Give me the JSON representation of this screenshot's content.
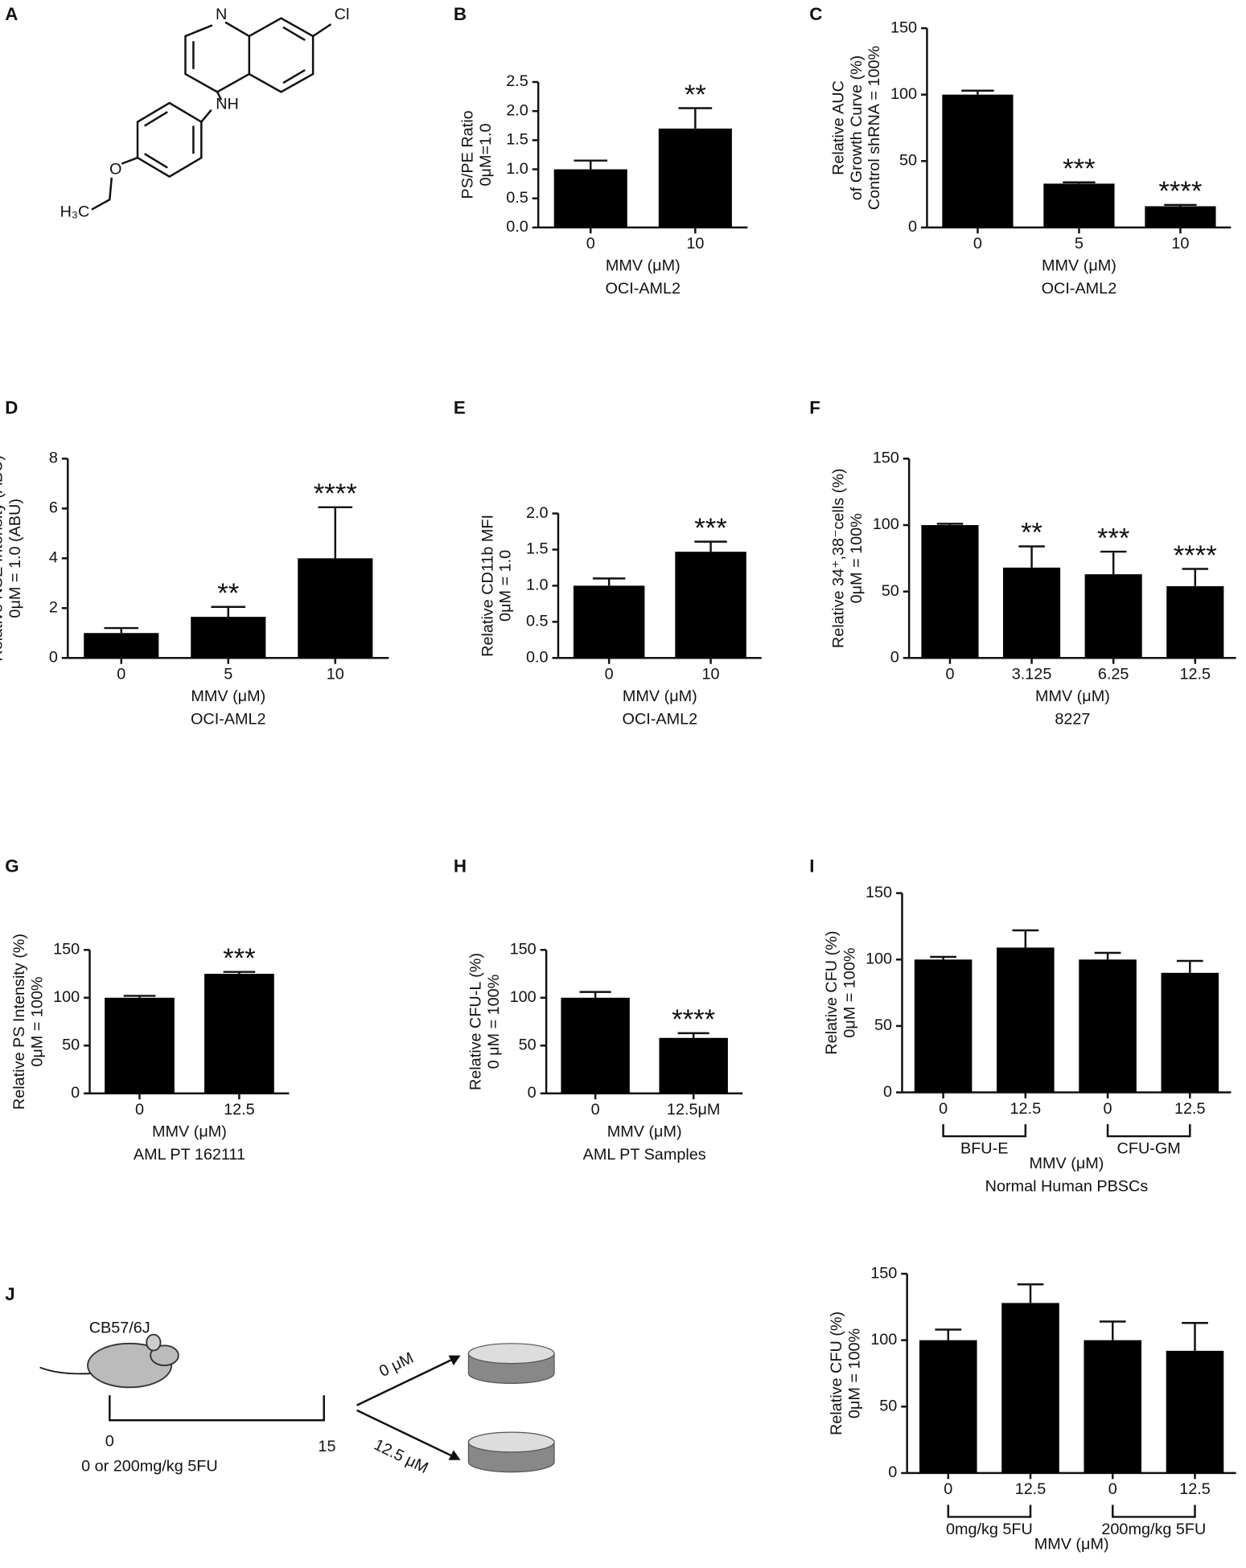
{
  "panel_a": {
    "letter": "A",
    "atoms": [
      "N",
      "Cl",
      "NH",
      "O",
      "H₃C"
    ]
  },
  "panel_j": {
    "letter": "J",
    "strain": "CB57/6J",
    "day_start": "0",
    "day_end": "15",
    "dose": "0 or 200mg/kg 5FU",
    "arrow_top": "0 μM",
    "arrow_bottom": "12.5 μM"
  },
  "chart_data": [
    {
      "type": "bar",
      "panel": "B",
      "ylabel": [
        "PS/PE Ratio",
        "0μM=1.0"
      ],
      "categories": [
        "0",
        "10"
      ],
      "values": [
        1.0,
        1.7
      ],
      "errors": [
        0.15,
        0.35
      ],
      "annotations": [
        null,
        "**"
      ],
      "xlabel": [
        "MMV (μM)",
        "OCI-AML2"
      ],
      "ylim": [
        0,
        2.5
      ],
      "yticks": [
        {
          "value": 0,
          "label": "0.0"
        },
        0.5,
        {
          "value": 1,
          "label": "1.0"
        },
        1.5,
        {
          "value": 2,
          "label": "2.0"
        },
        2.5
      ],
      "color": "#000000"
    },
    {
      "type": "bar",
      "panel": "C",
      "ylabel": [
        "Relative AUC",
        "of Growth Curve (%)",
        "Control shRNA = 100%"
      ],
      "categories": [
        "0",
        "5",
        "10"
      ],
      "values": [
        100,
        33,
        16
      ],
      "errors": [
        3,
        1,
        1
      ],
      "annotations": [
        null,
        "***",
        "****"
      ],
      "xlabel": [
        "MMV (μM)",
        "OCI-AML2"
      ],
      "ylim": [
        0,
        150
      ],
      "yticks": [
        0,
        50,
        100,
        150
      ],
      "color": "#000000"
    },
    {
      "type": "bar",
      "panel": "D",
      "ylabel": [
        "Relative NSE Intensity (ABU)",
        "0μM = 1.0 (ABU)"
      ],
      "categories": [
        "0",
        "5",
        "10"
      ],
      "values": [
        1.0,
        1.65,
        4.0
      ],
      "errors": [
        0.2,
        0.4,
        2.05
      ],
      "annotations": [
        null,
        "**",
        "****"
      ],
      "xlabel": [
        "MMV (μM)",
        "OCI-AML2"
      ],
      "ylim": [
        0,
        8
      ],
      "yticks": [
        0,
        2,
        4,
        6,
        8
      ],
      "color": "#000000"
    },
    {
      "type": "bar",
      "panel": "E",
      "ylabel": [
        "Relative CD11b MFI",
        "0μM = 1.0"
      ],
      "categories": [
        "0",
        "10"
      ],
      "values": [
        1.0,
        1.47
      ],
      "errors": [
        0.1,
        0.14
      ],
      "annotations": [
        null,
        "***"
      ],
      "xlabel": [
        "MMV (μM)",
        "OCI-AML2"
      ],
      "ylim": [
        0,
        2
      ],
      "yticks": [
        {
          "value": 0,
          "label": "0.0"
        },
        0.5,
        {
          "value": 1,
          "label": "1.0"
        },
        1.5,
        {
          "value": 2,
          "label": "2.0"
        }
      ],
      "color": "#000000"
    },
    {
      "type": "bar",
      "panel": "F",
      "ylabel": [
        "Relative 34⁺,38⁻cells (%)",
        "0μM = 100%"
      ],
      "categories": [
        "0",
        "3.125",
        "6.25",
        "12.5"
      ],
      "values": [
        100,
        68,
        63,
        54
      ],
      "errors": [
        1,
        16,
        17,
        13
      ],
      "annotations": [
        null,
        "**",
        "***",
        "****"
      ],
      "xlabel": [
        "MMV (μM)",
        "8227"
      ],
      "ylim": [
        0,
        150
      ],
      "yticks": [
        0,
        50,
        100,
        150
      ],
      "color": "#000000"
    },
    {
      "type": "bar",
      "panel": "G",
      "ylabel": [
        "Relative PS Intensity (%)",
        "0μM = 100%"
      ],
      "categories": [
        "0",
        "12.5"
      ],
      "values": [
        100,
        125
      ],
      "errors": [
        2,
        2
      ],
      "annotations": [
        null,
        "***"
      ],
      "xlabel": [
        "MMV (μM)",
        "AML PT 162111"
      ],
      "ylim": [
        0,
        150
      ],
      "yticks": [
        0,
        50,
        100,
        150
      ],
      "color": "#000000"
    },
    {
      "type": "bar",
      "panel": "H",
      "ylabel": [
        "Relative CFU-L (%)",
        "0 μM = 100%"
      ],
      "categories": [
        "0",
        "12.5μM"
      ],
      "values": [
        100,
        58
      ],
      "errors": [
        6,
        5
      ],
      "annotations": [
        null,
        "****"
      ],
      "xlabel": [
        "MMV (μM)",
        "AML PT Samples"
      ],
      "ylim": [
        0,
        150
      ],
      "yticks": [
        0,
        50,
        100,
        150
      ],
      "color": "#000000"
    },
    {
      "type": "bar",
      "panel": "I",
      "ylabel": [
        "Relative CFU (%)",
        "0μM = 100%"
      ],
      "categories": [
        "0",
        "12.5",
        "0",
        "12.5"
      ],
      "groups": [
        "BFU-E",
        "CFU-GM"
      ],
      "values": [
        100,
        109,
        100,
        90
      ],
      "errors": [
        2,
        13,
        5,
        9
      ],
      "xlabel": [
        "MMV (μM)",
        "Normal Human PBSCs"
      ],
      "ylim": [
        0,
        150
      ],
      "yticks": [
        0,
        50,
        100,
        150
      ],
      "color": "#000000"
    },
    {
      "type": "bar",
      "ylabel": [
        "Relative CFU (%)",
        "0μM = 100%"
      ],
      "categories": [
        "0",
        "12.5",
        "0",
        "12.5"
      ],
      "groups": [
        "0mg/kg 5FU",
        "200mg/kg 5FU"
      ],
      "values": [
        100,
        128,
        100,
        92
      ],
      "errors": [
        8,
        14,
        14,
        21
      ],
      "xlabel": [
        "MMV (μM)"
      ],
      "ylim": [
        0,
        150
      ],
      "yticks": [
        0,
        50,
        100,
        150
      ],
      "color": "#000000"
    }
  ]
}
